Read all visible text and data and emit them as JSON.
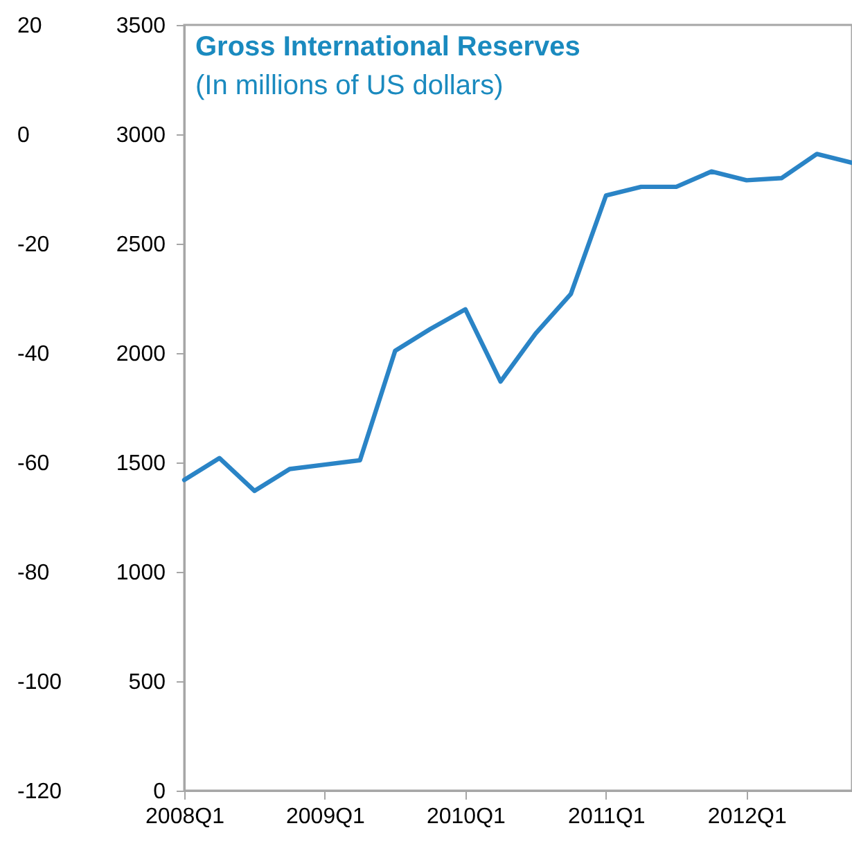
{
  "chart_data": {
    "type": "line",
    "title": "Gross International Reserves",
    "subtitle": "(In millions of US dollars)",
    "categories": [
      "2008Q1",
      null,
      null,
      null,
      "2009Q1",
      null,
      null,
      null,
      "2010Q1",
      null,
      null,
      null,
      "2011Q1",
      null,
      null,
      null,
      "2012Q1",
      null,
      null,
      null
    ],
    "series": [
      {
        "color": "#2a84c6",
        "axis": "y2",
        "values": [
          1420,
          1520,
          1370,
          1470,
          1490,
          1510,
          2010,
          2110,
          2200,
          1870,
          2090,
          2270,
          2720,
          2760,
          2760,
          2830,
          2790,
          2800,
          2910,
          2870
        ]
      }
    ],
    "ylim": [
      -120,
      20
    ],
    "yticks": [
      -120,
      -100,
      -80,
      -60,
      -40,
      -20,
      0,
      20
    ],
    "y2lim": [
      0,
      3500
    ],
    "y2ticks": [
      0,
      500,
      1000,
      1500,
      2000,
      2500,
      3000,
      3500
    ],
    "grid": false,
    "line_style": "solid",
    "marker": "none"
  }
}
